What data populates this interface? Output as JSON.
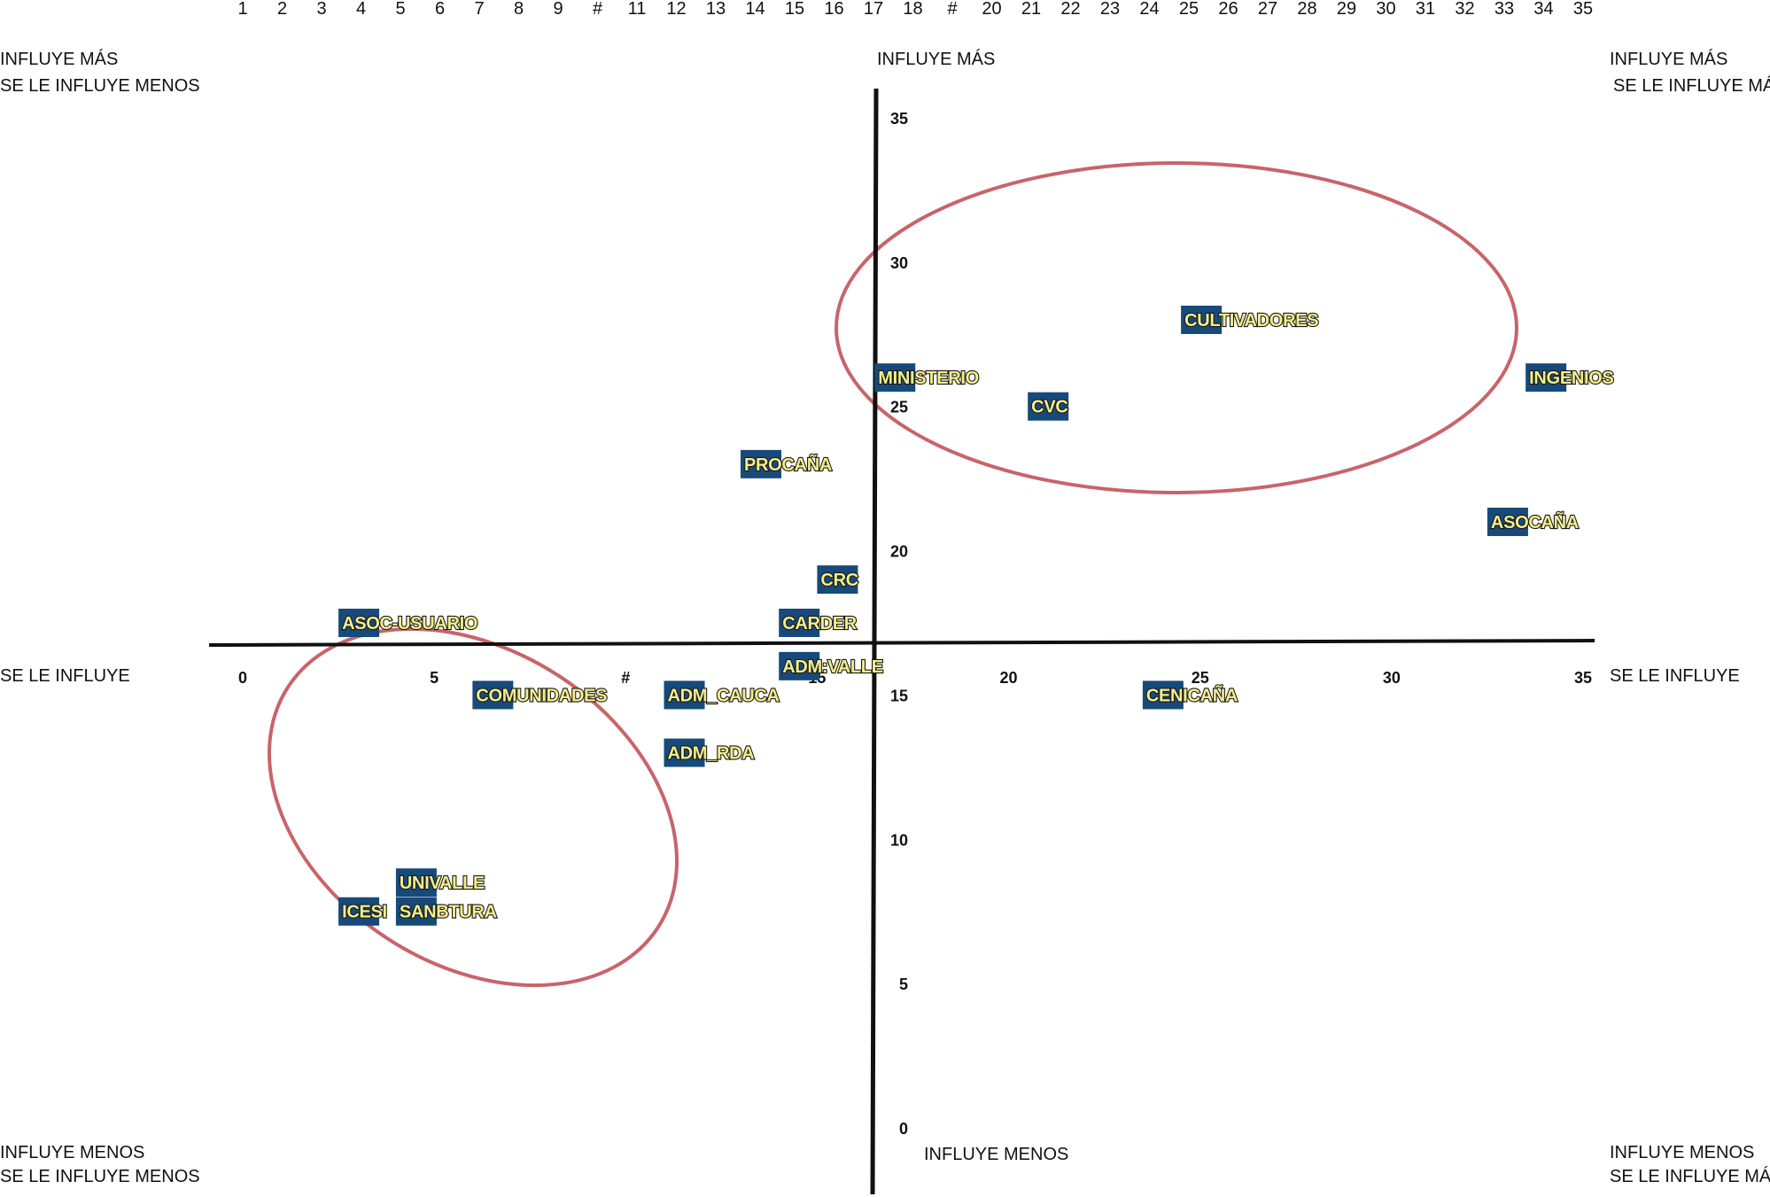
{
  "quadrant_labels": {
    "top_left": [
      "INFLUYE MÁS",
      "SE LE INFLUYE MENOS"
    ],
    "top_center": "INFLUYE MÁS",
    "top_right": [
      "INFLUYE MÁS",
      "SE LE INFLUYE MÁS"
    ],
    "middle_left": "SE LE INFLUYE",
    "middle_right": "SE LE INFLUYE",
    "bottom_left": [
      "INFLUYE MENOS",
      "SE LE INFLUYE MENOS"
    ],
    "bottom_center": "INFLUYE MENOS",
    "bottom_right": [
      "INFLUYE MENOS",
      "SE LE INFLUYE MÁS"
    ]
  },
  "chart_data": {
    "type": "scatter",
    "title": "",
    "xlabel": "SE LE INFLUYE",
    "ylabel": "INFLUYE MÁS",
    "xlim": [
      0,
      35
    ],
    "ylim": [
      0,
      35
    ],
    "grid": false,
    "top_ticks": [
      "1",
      "2",
      "3",
      "4",
      "5",
      "6",
      "7",
      "8",
      "9",
      "#",
      "11",
      "12",
      "13",
      "14",
      "15",
      "16",
      "17",
      "18",
      "#",
      "20",
      "21",
      "22",
      "23",
      "24",
      "25",
      "26",
      "27",
      "28",
      "29",
      "30",
      "31",
      "32",
      "33",
      "34",
      "35"
    ],
    "x_ticks": [
      {
        "value": 0,
        "label": "0"
      },
      {
        "value": 5,
        "label": "5"
      },
      {
        "value": 10,
        "label": "#"
      },
      {
        "value": 15,
        "label": "15"
      },
      {
        "value": 20,
        "label": "20"
      },
      {
        "value": 25,
        "label": "25"
      },
      {
        "value": 30,
        "label": "30"
      },
      {
        "value": 35,
        "label": "35"
      }
    ],
    "y_ticks": [
      {
        "value": 0,
        "label": "0"
      },
      {
        "value": 5,
        "label": "5"
      },
      {
        "value": 10,
        "label": "10"
      },
      {
        "value": 15,
        "label": "15"
      },
      {
        "value": 20,
        "label": "20"
      },
      {
        "value": 25,
        "label": "25"
      },
      {
        "value": 30,
        "label": "30"
      },
      {
        "value": 35,
        "label": "35"
      }
    ],
    "points": [
      {
        "label": "CULTIVADORES",
        "x": 24.5,
        "y": 28
      },
      {
        "label": "MINISTERIO",
        "x": 16.5,
        "y": 26
      },
      {
        "label": "INGENIOS",
        "x": 33.5,
        "y": 26
      },
      {
        "label": "CVC",
        "x": 20.5,
        "y": 25
      },
      {
        "label": "PROCAÑA",
        "x": 13,
        "y": 23
      },
      {
        "label": "ASOCAÑA",
        "x": 32.5,
        "y": 21
      },
      {
        "label": "CRC",
        "x": 15,
        "y": 19
      },
      {
        "label": "CARDER",
        "x": 14,
        "y": 17.5
      },
      {
        "label": "ASOC-USUARIO",
        "x": 2.5,
        "y": 17.5
      },
      {
        "label": "ADM:VALLE",
        "x": 14,
        "y": 16
      },
      {
        "label": "COMUNIDADES",
        "x": 6,
        "y": 15
      },
      {
        "label": "ADM_CAUCA",
        "x": 11,
        "y": 15
      },
      {
        "label": "CENICAÑA",
        "x": 23.5,
        "y": 15
      },
      {
        "label": "ADM_RDA",
        "x": 11,
        "y": 13
      },
      {
        "label": "UNIVALLE",
        "x": 4,
        "y": 8.5
      },
      {
        "label": "ICESI",
        "x": 2.5,
        "y": 7.5
      },
      {
        "label": "SANBTURA",
        "x": 4,
        "y": 7.5
      }
    ],
    "groups": [
      {
        "name": "upper-right-group",
        "members": [
          "CULTIVADORES",
          "MINISTERIO",
          "CVC"
        ],
        "color": "#c8646a"
      },
      {
        "name": "lower-left-group",
        "members": [
          "COMUNIDADES",
          "UNIVALLE",
          "ICESI",
          "SANBTURA"
        ],
        "color": "#c8646a"
      }
    ],
    "colors": {
      "marker": "#174a7a",
      "label_text": "#f3ee8a",
      "axis": "#111111",
      "ellipse": "#c8646a"
    }
  }
}
